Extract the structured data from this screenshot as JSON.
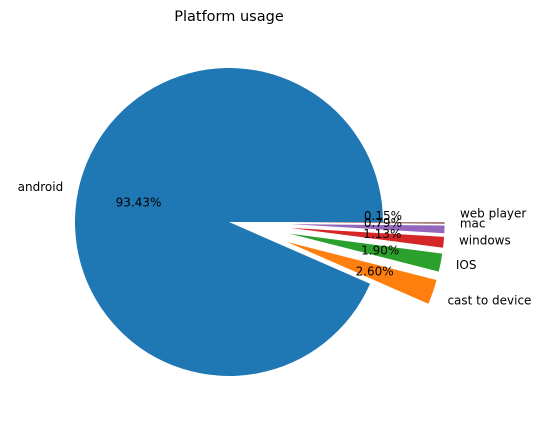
{
  "chart_data": {
    "type": "pie",
    "title": "Platform usage",
    "slices": [
      {
        "label": "android",
        "value": 93.43,
        "pct_label": "93.43%",
        "color": "#1f77b4",
        "explode": 0.0
      },
      {
        "label": "cast to device",
        "value": 2.6,
        "pct_label": "2.60%",
        "color": "#ff7f0e",
        "explode": 0.4
      },
      {
        "label": "IOS",
        "value": 1.9,
        "pct_label": "1.90%",
        "color": "#2ca02c",
        "explode": 0.4
      },
      {
        "label": "windows",
        "value": 1.13,
        "pct_label": "1.13%",
        "color": "#d62728",
        "explode": 0.4
      },
      {
        "label": "mac",
        "value": 0.79,
        "pct_label": "0.79%",
        "color": "#9467bd",
        "explode": 0.4
      },
      {
        "label": "web player",
        "value": 0.15,
        "pct_label": "0.15%",
        "color": "#8c564b",
        "explode": 0.4
      }
    ],
    "start_angle_deg": 0,
    "direction": "counterclockwise",
    "legend": "none"
  }
}
